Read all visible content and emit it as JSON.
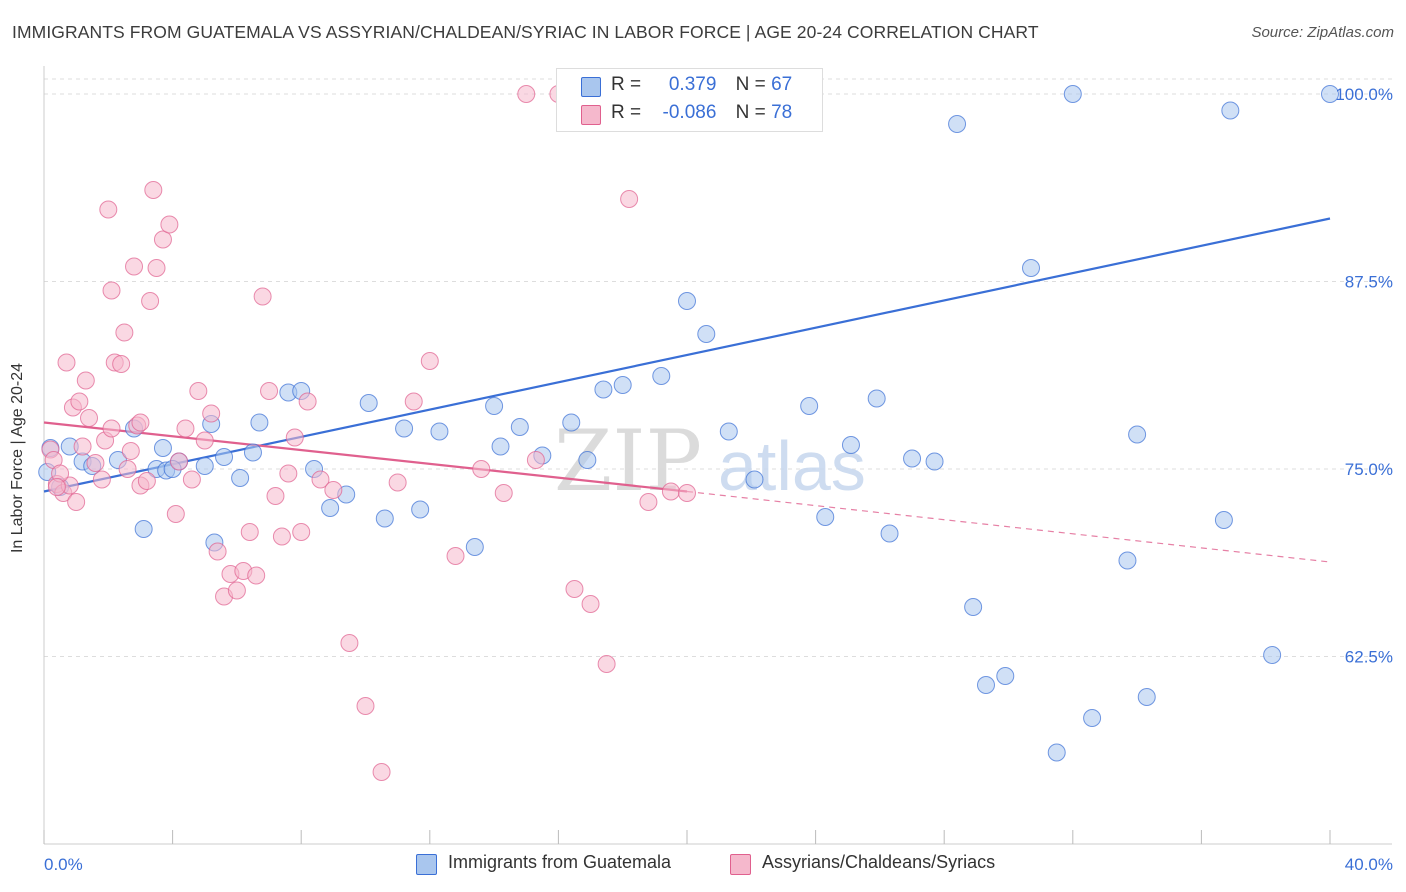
{
  "title": "IMMIGRANTS FROM GUATEMALA VS ASSYRIAN/CHALDEAN/SYRIAC IN LABOR FORCE | AGE 20-24 CORRELATION CHART",
  "source": "Source: ZipAtlas.com",
  "watermark": {
    "zip": "ZIP",
    "atlas": "atlas"
  },
  "legend": {
    "r_label": "R =",
    "n_label": "N =",
    "series1": {
      "r": "0.379",
      "n": "67"
    },
    "series2": {
      "r": "-0.086",
      "n": "78"
    }
  },
  "colors": {
    "blue": "#3a6fd6",
    "blue_fill": "#a9c6ee",
    "pink": "#e0608e",
    "pink_fill": "#f5b8cc",
    "grid": "#dddddd",
    "tick_label": "#3a6fd6"
  },
  "chart_data": {
    "type": "scatter",
    "title": "IMMIGRANTS FROM GUATEMALA VS ASSYRIAN/CHALDEAN/SYRIAC IN LABOR FORCE | AGE 20-24 CORRELATION CHART",
    "xlabel": "",
    "ylabel": "In Labor Force | Age 20-24",
    "xlim": [
      0,
      40
    ],
    "ylim": [
      50,
      101.2
    ],
    "x_tick_labels": [
      "0.0%",
      "40.0%"
    ],
    "y_ticks": [
      62.5,
      75.0,
      87.5,
      100.0
    ],
    "y_tick_labels": [
      "62.5%",
      "75.0%",
      "87.5%",
      "100.0%"
    ],
    "grid": true,
    "legend_position": "top-center",
    "series": [
      {
        "name": "Immigrants from Guatemala",
        "color": "#3a6fd6",
        "trend": {
          "x": [
            0.0,
            40.0
          ],
          "y": [
            73.5,
            91.7
          ]
        },
        "points": [
          [
            0.1,
            74.8
          ],
          [
            0.2,
            76.4
          ],
          [
            0.5,
            73.8
          ],
          [
            0.8,
            76.5
          ],
          [
            1.2,
            75.5
          ],
          [
            1.5,
            75.2
          ],
          [
            2.3,
            75.6
          ],
          [
            2.8,
            77.7
          ],
          [
            3.1,
            71.0
          ],
          [
            3.5,
            75.0
          ],
          [
            3.8,
            74.9
          ],
          [
            3.7,
            76.4
          ],
          [
            4.2,
            75.5
          ],
          [
            4.0,
            75.0
          ],
          [
            5.0,
            75.2
          ],
          [
            5.2,
            78.0
          ],
          [
            6.5,
            76.1
          ],
          [
            5.3,
            70.1
          ],
          [
            5.6,
            75.8
          ],
          [
            6.1,
            74.4
          ],
          [
            6.7,
            78.1
          ],
          [
            7.6,
            80.1
          ],
          [
            8.0,
            80.2
          ],
          [
            8.4,
            75.0
          ],
          [
            8.9,
            72.4
          ],
          [
            9.4,
            73.3
          ],
          [
            10.1,
            79.4
          ],
          [
            10.6,
            71.7
          ],
          [
            11.2,
            77.7
          ],
          [
            11.7,
            72.3
          ],
          [
            12.3,
            77.5
          ],
          [
            13.4,
            69.8
          ],
          [
            14.0,
            79.2
          ],
          [
            14.2,
            76.5
          ],
          [
            14.8,
            77.8
          ],
          [
            15.5,
            75.9
          ],
          [
            16.4,
            78.1
          ],
          [
            16.9,
            75.6
          ],
          [
            17.4,
            80.3
          ],
          [
            18.0,
            80.6
          ],
          [
            19.2,
            81.2
          ],
          [
            20.0,
            86.2
          ],
          [
            20.6,
            84.0
          ],
          [
            21.3,
            77.5
          ],
          [
            22.1,
            74.3
          ],
          [
            23.8,
            79.2
          ],
          [
            24.3,
            71.8
          ],
          [
            25.1,
            76.6
          ],
          [
            25.9,
            79.7
          ],
          [
            26.3,
            70.7
          ],
          [
            27.0,
            75.7
          ],
          [
            27.7,
            75.5
          ],
          [
            28.4,
            98.0
          ],
          [
            28.9,
            65.8
          ],
          [
            29.3,
            60.6
          ],
          [
            29.9,
            61.2
          ],
          [
            30.7,
            88.4
          ],
          [
            31.5,
            56.1
          ],
          [
            32.0,
            100.0
          ],
          [
            32.6,
            58.4
          ],
          [
            34.0,
            77.3
          ],
          [
            33.7,
            68.9
          ],
          [
            34.3,
            59.8
          ],
          [
            36.7,
            71.6
          ],
          [
            38.2,
            62.6
          ],
          [
            40.0,
            100.0
          ],
          [
            36.9,
            98.9
          ]
        ]
      },
      {
        "name": "Assyrians/Chaldeans/Syriacs",
        "color": "#e0608e",
        "trend": {
          "x": [
            0.0,
            20.0
          ],
          "y": [
            78.1,
            73.5
          ]
        },
        "trend_dashed": {
          "x": [
            20.0,
            40.0
          ],
          "y": [
            73.5,
            68.8
          ]
        },
        "points": [
          [
            0.2,
            76.3
          ],
          [
            0.4,
            74.0
          ],
          [
            0.3,
            75.6
          ],
          [
            0.6,
            73.4
          ],
          [
            0.8,
            73.9
          ],
          [
            0.5,
            74.7
          ],
          [
            0.4,
            73.8
          ],
          [
            1.0,
            72.8
          ],
          [
            1.2,
            76.5
          ],
          [
            0.9,
            79.1
          ],
          [
            1.1,
            79.5
          ],
          [
            1.3,
            80.9
          ],
          [
            0.7,
            82.1
          ],
          [
            1.4,
            78.4
          ],
          [
            1.6,
            75.4
          ],
          [
            1.8,
            74.3
          ],
          [
            1.9,
            76.9
          ],
          [
            2.1,
            77.7
          ],
          [
            2.2,
            82.1
          ],
          [
            2.4,
            82.0
          ],
          [
            2.6,
            75.0
          ],
          [
            2.7,
            76.2
          ],
          [
            2.9,
            77.9
          ],
          [
            3.0,
            73.9
          ],
          [
            3.2,
            74.2
          ],
          [
            3.0,
            78.1
          ],
          [
            3.3,
            86.2
          ],
          [
            3.5,
            88.4
          ],
          [
            3.7,
            90.3
          ],
          [
            3.9,
            91.3
          ],
          [
            2.5,
            84.1
          ],
          [
            2.1,
            86.9
          ],
          [
            2.8,
            88.5
          ],
          [
            2.0,
            92.3
          ],
          [
            3.4,
            93.6
          ],
          [
            4.1,
            72.0
          ],
          [
            4.2,
            75.5
          ],
          [
            4.4,
            77.7
          ],
          [
            4.6,
            74.3
          ],
          [
            4.8,
            80.2
          ],
          [
            5.0,
            76.9
          ],
          [
            5.2,
            78.7
          ],
          [
            5.4,
            69.5
          ],
          [
            5.6,
            66.5
          ],
          [
            5.8,
            68.0
          ],
          [
            6.0,
            66.9
          ],
          [
            6.2,
            68.2
          ],
          [
            6.4,
            70.8
          ],
          [
            6.6,
            67.9
          ],
          [
            6.8,
            86.5
          ],
          [
            7.0,
            80.2
          ],
          [
            7.2,
            73.2
          ],
          [
            7.4,
            70.5
          ],
          [
            7.6,
            74.7
          ],
          [
            7.8,
            77.1
          ],
          [
            8.0,
            70.8
          ],
          [
            8.2,
            79.5
          ],
          [
            8.6,
            74.3
          ],
          [
            9.0,
            73.6
          ],
          [
            9.5,
            63.4
          ],
          [
            10.0,
            59.2
          ],
          [
            10.5,
            54.8
          ],
          [
            11.0,
            74.1
          ],
          [
            11.5,
            79.5
          ],
          [
            12.0,
            82.2
          ],
          [
            12.8,
            69.2
          ],
          [
            13.6,
            75.0
          ],
          [
            14.3,
            73.4
          ],
          [
            15.0,
            100.0
          ],
          [
            15.3,
            75.6
          ],
          [
            16.0,
            100.0
          ],
          [
            16.5,
            67.0
          ],
          [
            17.0,
            66.0
          ],
          [
            17.5,
            62.0
          ],
          [
            18.2,
            93.0
          ],
          [
            18.8,
            72.8
          ],
          [
            19.5,
            73.5
          ],
          [
            20.0,
            73.4
          ]
        ]
      }
    ]
  }
}
